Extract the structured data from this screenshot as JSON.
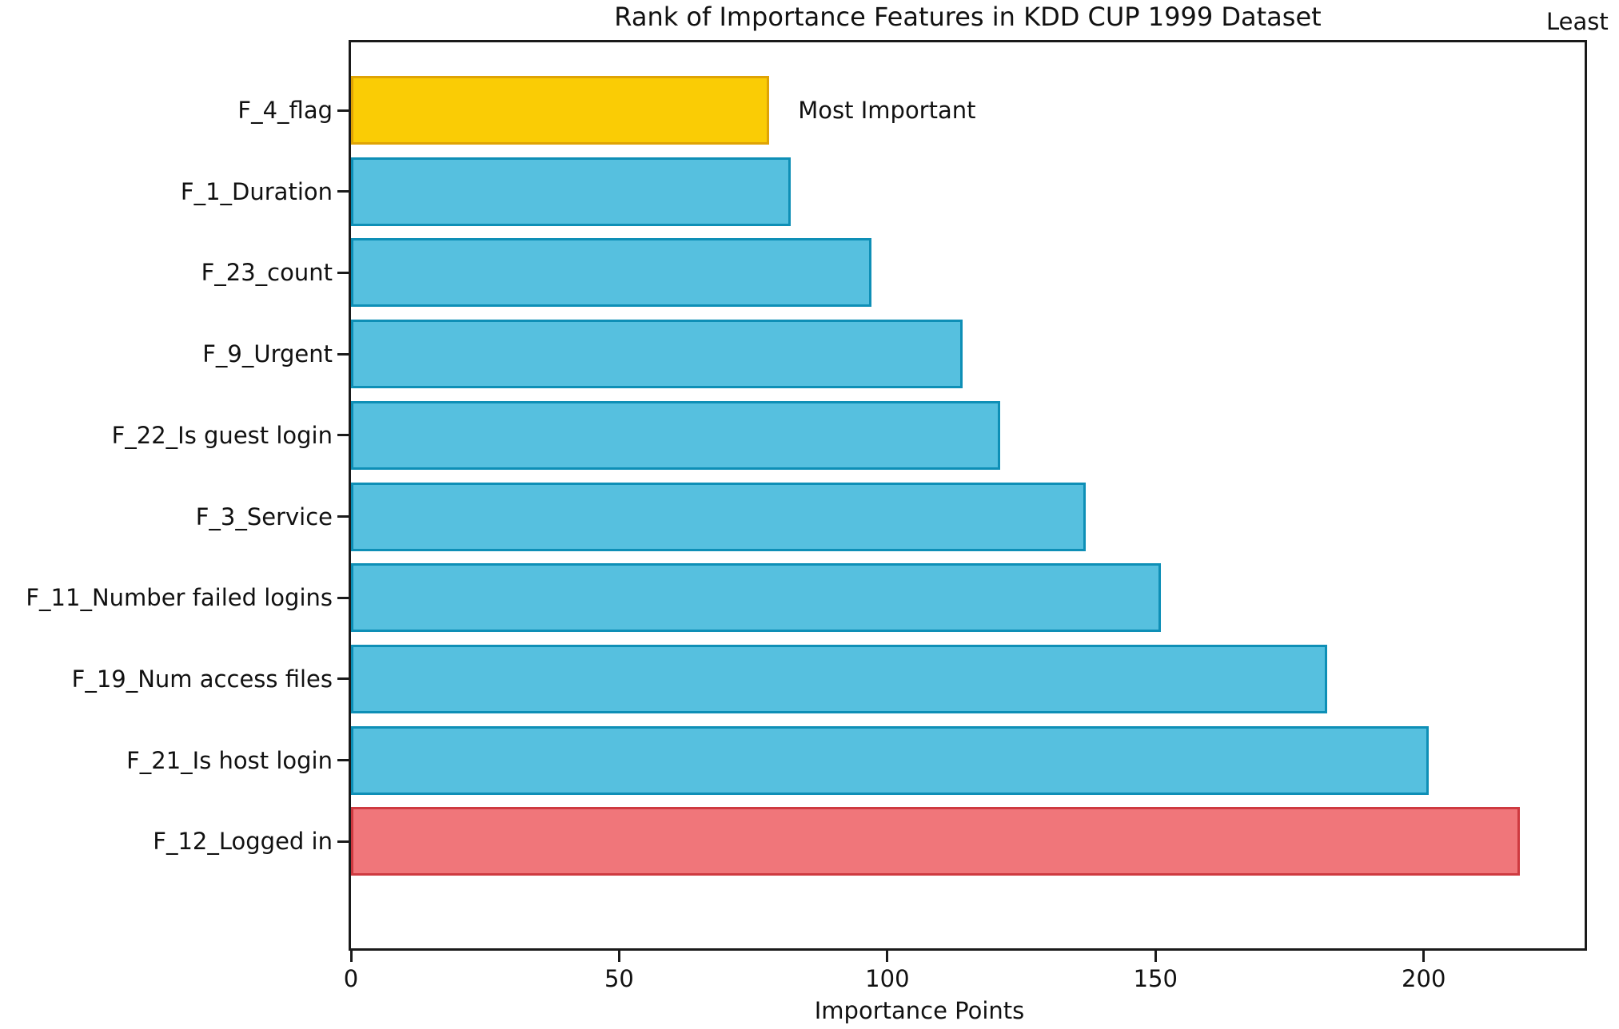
{
  "chart_data": {
    "type": "bar",
    "orientation": "horizontal",
    "title": "Rank of Importance Features in KDD CUP 1999 Dataset",
    "xlabel": "Importance Points",
    "ylabel": "",
    "categories": [
      "F_4_flag",
      "F_1_Duration",
      "F_23_count",
      "F_9_Urgent",
      "F_22_Is guest login",
      "F_3_Service",
      "F_11_Number failed logins",
      "F_19_Num access files",
      "F_21_Is host login",
      "F_12_Logged in"
    ],
    "values": [
      78,
      82,
      97,
      114,
      121,
      137,
      151,
      182,
      201,
      218
    ],
    "bar_fill_colors": [
      "#FACC05",
      "#56C0DF",
      "#56C0DF",
      "#56C0DF",
      "#56C0DF",
      "#56C0DF",
      "#56C0DF",
      "#56C0DF",
      "#56C0DF",
      "#F0767A"
    ],
    "bar_edge_colors": [
      "#DFA304",
      "#0E8FB6",
      "#0E8FB6",
      "#0E8FB6",
      "#0E8FB6",
      "#0E8FB6",
      "#0E8FB6",
      "#0E8FB6",
      "#0E8FB6",
      "#CE3A40"
    ],
    "xlim": [
      0,
      230
    ],
    "x_ticks": [
      "0",
      "50",
      "100",
      "150",
      "200"
    ],
    "x_tick_values": [
      0,
      50,
      100,
      150,
      200
    ],
    "grid": false,
    "legend_position": "none",
    "annotations": {
      "most_important": "Most Important",
      "least": "Least"
    },
    "colors": {
      "spine": "#1a1a1a",
      "text": "#111111",
      "background": "#ffffff"
    }
  }
}
